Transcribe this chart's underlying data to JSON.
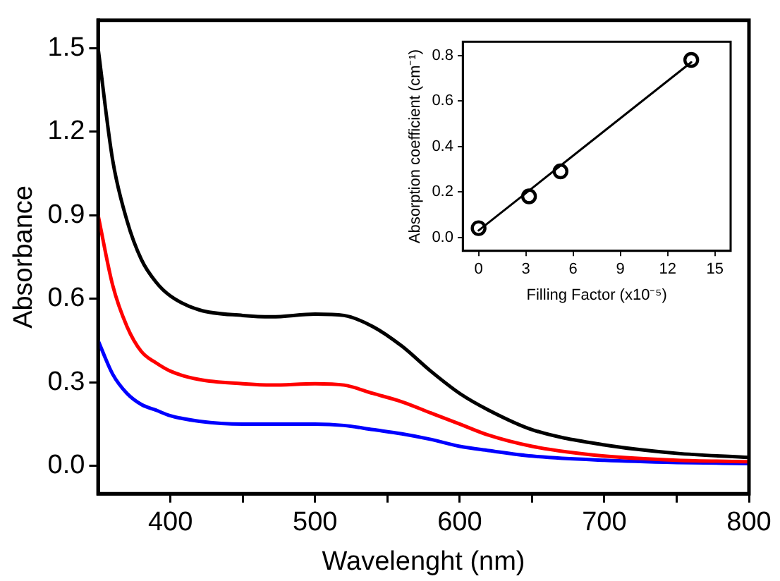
{
  "chart_data": [
    {
      "type": "line",
      "xlabel": "Wavelenght (nm)",
      "ylabel": "Absorbance",
      "x": [
        350,
        360,
        370,
        380,
        390,
        400,
        420,
        450,
        470,
        500,
        520,
        540,
        560,
        580,
        600,
        620,
        650,
        700,
        750,
        800
      ],
      "series": [
        {
          "color": "#000000",
          "values": [
            1.5,
            1.1,
            0.88,
            0.74,
            0.66,
            0.61,
            0.56,
            0.54,
            0.535,
            0.545,
            0.54,
            0.5,
            0.43,
            0.34,
            0.26,
            0.2,
            0.13,
            0.075,
            0.045,
            0.03
          ]
        },
        {
          "color": "#ff0000",
          "values": [
            0.9,
            0.65,
            0.5,
            0.41,
            0.37,
            0.34,
            0.31,
            0.295,
            0.29,
            0.295,
            0.29,
            0.26,
            0.23,
            0.19,
            0.15,
            0.11,
            0.07,
            0.035,
            0.02,
            0.015
          ]
        },
        {
          "color": "#0000ff",
          "values": [
            0.45,
            0.33,
            0.26,
            0.22,
            0.2,
            0.18,
            0.16,
            0.15,
            0.15,
            0.15,
            0.145,
            0.13,
            0.115,
            0.095,
            0.07,
            0.055,
            0.035,
            0.02,
            0.012,
            0.008
          ]
        }
      ],
      "xlim": [
        350,
        800
      ],
      "xticks": [
        400,
        {
          "value": 450,
          "label": null
        },
        500,
        {
          "value": 550,
          "label": null
        },
        600,
        {
          "value": 650,
          "label": null
        },
        700,
        {
          "value": 750,
          "label": null
        },
        800
      ],
      "ylim": [
        -0.1,
        1.6
      ],
      "yticks": [
        {
          "value": 0,
          "label": "0.0"
        },
        0.3,
        0.6,
        0.9,
        1.2,
        1.5
      ],
      "grid": false,
      "legend": false,
      "marker": "none",
      "line_style": "solid"
    },
    {
      "type": "scatter",
      "xlabel": "Filling Factor (x10⁻⁵)",
      "ylabel": "Absorption coefficient (cm⁻¹)",
      "series": [
        {
          "type": "scatter",
          "color": "#000000",
          "marker": "circle",
          "x": [
            0,
            3.2,
            5.2,
            13.5
          ],
          "values": [
            0.04,
            0.18,
            0.29,
            0.78
          ]
        },
        {
          "type": "line",
          "color": "#000000",
          "marker": "none",
          "x": [
            0,
            13.5
          ],
          "values": [
            0.03,
            0.77
          ]
        }
      ],
      "xlim": [
        -1,
        16
      ],
      "xticks": [
        0,
        3,
        6,
        9,
        12,
        15
      ],
      "ylim": [
        -0.06,
        0.86
      ],
      "yticks": [
        {
          "value": 0,
          "label": "0.0"
        },
        0.2,
        0.4,
        0.6,
        0.8
      ],
      "grid": false,
      "legend": false
    }
  ]
}
